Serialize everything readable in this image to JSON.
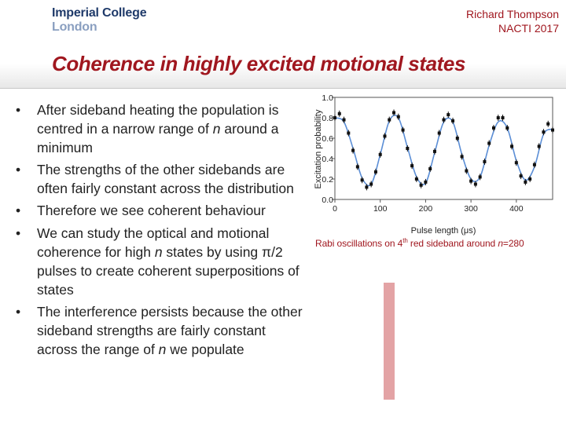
{
  "logo": {
    "line1": "Imperial College",
    "line2": "London"
  },
  "author": {
    "name": "Richard Thompson",
    "event": "NACTI 2017"
  },
  "title": "Coherence in highly excited motional states",
  "bullets": [
    {
      "html": "After sideband heating the population is centred in a narrow range of <i>n</i> around a minimum"
    },
    {
      "html": "The strengths of the other sidebands are often fairly constant across the distribution"
    },
    {
      "html": "Therefore we see coherent behaviour"
    },
    {
      "html": "We can study the optical and motional coherence for high <i>n</i> states by using π/2 pulses to create coherent superpositions of states"
    },
    {
      "html": "The interference persists because the other sideband strengths are fairly constant across the range of <i>n</i> we populate"
    }
  ],
  "bullet_symbol": "•",
  "caption": {
    "prefix": "Rabi oscillations on 4",
    "sup": "th",
    "middle": " red sideband around ",
    "italic": "n",
    "suffix": "=280"
  },
  "colors": {
    "accent": "#a0171f",
    "logo_dark": "#1f3a6a",
    "logo_light": "#8a9fc0",
    "fit_line": "#5b8ed6",
    "data_points": "#111111",
    "pink_bar": "#e3a3a5"
  },
  "chart_data": {
    "type": "scatter",
    "xlabel": "Pulse length (μs)",
    "ylabel": "Excitation probability",
    "xlim": [
      0,
      480
    ],
    "ylim": [
      0,
      1.0
    ],
    "x_ticks": [
      0,
      100,
      200,
      300,
      400
    ],
    "x_tick_labels": [
      "0",
      "100",
      "200",
      "300",
      "400"
    ],
    "y_ticks": [
      0.0,
      0.2,
      0.4,
      0.6,
      0.8,
      1.0
    ],
    "y_tick_labels": [
      "0.0",
      "0.2",
      "0.4",
      "0.6",
      "0.8",
      "1.0"
    ],
    "grid": false,
    "series": [
      {
        "kind": "points",
        "x": [
          0,
          10,
          20,
          30,
          40,
          50,
          60,
          70,
          80,
          90,
          100,
          110,
          120,
          130,
          140,
          150,
          160,
          170,
          180,
          190,
          200,
          210,
          220,
          230,
          240,
          250,
          260,
          270,
          280,
          290,
          300,
          310,
          320,
          330,
          340,
          350,
          360,
          370,
          380,
          390,
          400,
          410,
          420,
          430,
          440,
          450,
          460,
          470,
          480
        ],
        "y": [
          0.8,
          0.84,
          0.78,
          0.65,
          0.48,
          0.32,
          0.19,
          0.12,
          0.15,
          0.27,
          0.44,
          0.62,
          0.78,
          0.85,
          0.81,
          0.68,
          0.5,
          0.33,
          0.2,
          0.14,
          0.17,
          0.3,
          0.47,
          0.65,
          0.78,
          0.83,
          0.77,
          0.6,
          0.42,
          0.28,
          0.18,
          0.15,
          0.22,
          0.37,
          0.55,
          0.7,
          0.8,
          0.8,
          0.7,
          0.52,
          0.36,
          0.23,
          0.17,
          0.2,
          0.34,
          0.52,
          0.66,
          0.74,
          0.68
        ]
      },
      {
        "kind": "fit",
        "x": [
          0,
          20,
          40,
          60,
          80,
          100,
          120,
          140,
          160,
          180,
          200,
          220,
          240,
          260,
          280,
          300,
          320,
          340,
          360,
          380,
          400,
          420,
          440,
          460,
          480
        ],
        "y": [
          0.8,
          0.76,
          0.5,
          0.21,
          0.15,
          0.44,
          0.77,
          0.8,
          0.51,
          0.22,
          0.16,
          0.46,
          0.76,
          0.76,
          0.44,
          0.2,
          0.22,
          0.53,
          0.76,
          0.7,
          0.38,
          0.19,
          0.32,
          0.64,
          0.69
        ]
      }
    ]
  }
}
